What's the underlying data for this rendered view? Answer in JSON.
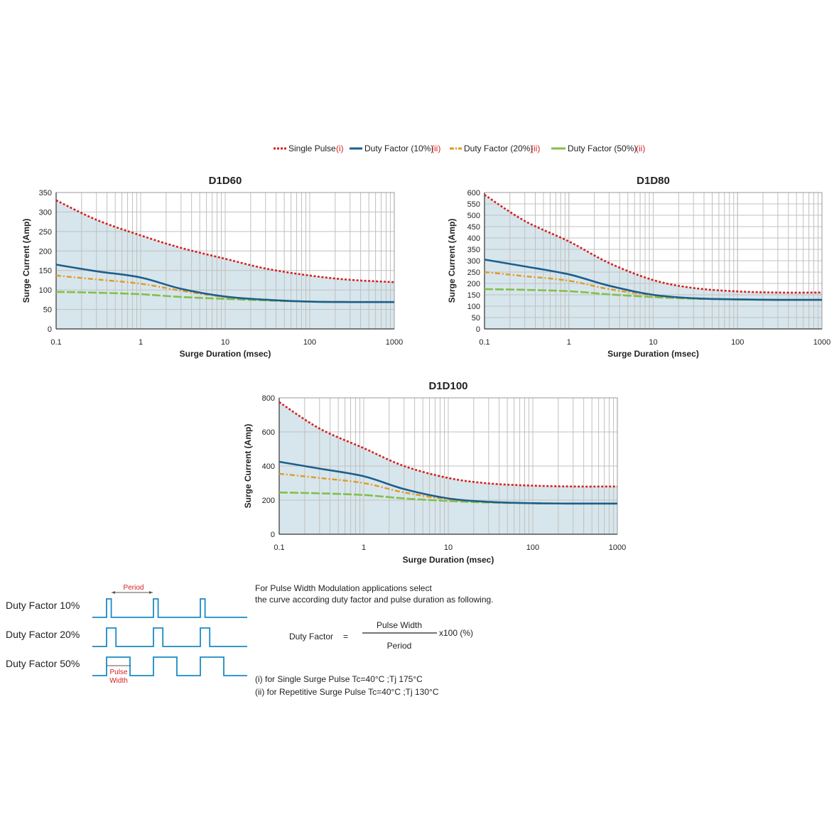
{
  "legend": {
    "items": [
      {
        "label": "Single Pulse",
        "note": "(i)",
        "color": "#d42020",
        "style": "dotted"
      },
      {
        "label": "Duty Factor (10%)",
        "note": "(ii)",
        "color": "#1c5f8e",
        "style": "solid"
      },
      {
        "label": "Duty Factor (20%)",
        "note": "(ii)",
        "color": "#e29a22",
        "style": "dashdot"
      },
      {
        "label": "Duty Factor (50%)",
        "note": "(ii)",
        "color": "#84bf4a",
        "style": "dashed"
      }
    ]
  },
  "colors": {
    "fill": "#d7e6ec",
    "grid": "#c0c0c0",
    "single": "#d42020",
    "df10": "#1c5f8e",
    "df20": "#e29a22",
    "df50": "#84bf4a",
    "pulse": "#1a8bc4",
    "period": "#d42020"
  },
  "chart_data": [
    {
      "type": "line",
      "title": "D1D60",
      "xlabel": "Surge Duration (msec)",
      "ylabel": "Surge Current (Amp)",
      "xscale": "log",
      "xlim": [
        0.1,
        1000
      ],
      "ylim": [
        0,
        350
      ],
      "xticks": [
        "0.1",
        "1",
        "10",
        "100",
        "1000"
      ],
      "yticks": [
        "0",
        "50",
        "100",
        "150",
        "200",
        "250",
        "300",
        "350"
      ],
      "x": [
        0.1,
        0.3,
        1,
        3,
        10,
        30,
        100,
        300,
        1000
      ],
      "series": [
        {
          "name": "Single Pulse",
          "values": [
            330,
            280,
            240,
            208,
            180,
            155,
            137,
            126,
            120
          ]
        },
        {
          "name": "Duty Factor (10%)",
          "values": [
            165,
            148,
            132,
            103,
            83,
            75,
            70,
            69,
            69
          ]
        },
        {
          "name": "Duty Factor (20%)",
          "values": [
            137,
            127,
            116,
            98,
            82,
            75,
            70,
            69,
            69
          ]
        },
        {
          "name": "Duty Factor (50%)",
          "values": [
            95,
            93,
            89,
            82,
            77,
            73,
            70,
            69,
            69
          ]
        }
      ]
    },
    {
      "type": "line",
      "title": "D1D80",
      "xlabel": "Surge Duration (msec)",
      "ylabel": "Surge Current (Amp)",
      "xscale": "log",
      "xlim": [
        0.1,
        1000
      ],
      "ylim": [
        0,
        600
      ],
      "xticks": [
        "0.1",
        "1",
        "10",
        "100",
        "1000"
      ],
      "yticks": [
        "0",
        "50",
        "100",
        "150",
        "200",
        "250",
        "300",
        "350",
        "400",
        "450",
        "500",
        "550",
        "600"
      ],
      "x": [
        0.1,
        0.3,
        1,
        3,
        10,
        30,
        100,
        300,
        1000
      ],
      "series": [
        {
          "name": "Single Pulse",
          "values": [
            590,
            475,
            385,
            290,
            215,
            180,
            165,
            160,
            160
          ]
        },
        {
          "name": "Duty Factor (10%)",
          "values": [
            305,
            275,
            240,
            190,
            150,
            135,
            130,
            128,
            128
          ]
        },
        {
          "name": "Duty Factor (20%)",
          "values": [
            250,
            232,
            212,
            175,
            148,
            135,
            130,
            128,
            128
          ]
        },
        {
          "name": "Duty Factor (50%)",
          "values": [
            175,
            172,
            166,
            152,
            140,
            133,
            130,
            128,
            128
          ]
        }
      ]
    },
    {
      "type": "line",
      "title": "D1D100",
      "xlabel": "Surge Duration (msec)",
      "ylabel": "Surge Current (Amp)",
      "xscale": "log",
      "xlim": [
        0.1,
        1000
      ],
      "ylim": [
        0,
        800
      ],
      "xticks": [
        "0.1",
        "1",
        "10",
        "100",
        "1000"
      ],
      "yticks": [
        "0",
        "200",
        "400",
        "600",
        "800"
      ],
      "x": [
        0.1,
        0.3,
        1,
        3,
        10,
        30,
        100,
        300,
        1000
      ],
      "series": [
        {
          "name": "Single Pulse",
          "values": [
            775,
            620,
            505,
            400,
            330,
            298,
            285,
            280,
            280
          ]
        },
        {
          "name": "Duty Factor (10%)",
          "values": [
            425,
            385,
            340,
            265,
            210,
            190,
            182,
            180,
            180
          ]
        },
        {
          "name": "Duty Factor (20%)",
          "values": [
            355,
            330,
            300,
            245,
            205,
            190,
            182,
            180,
            180
          ]
        },
        {
          "name": "Duty Factor (50%)",
          "values": [
            245,
            240,
            230,
            210,
            195,
            186,
            182,
            180,
            180
          ]
        }
      ]
    }
  ],
  "pulses": {
    "rows": [
      {
        "label": "Duty Factor 10%",
        "duty": 0.1
      },
      {
        "label": "Duty Factor 20%",
        "duty": 0.2
      },
      {
        "label": "Duty Factor 50%",
        "duty": 0.5
      }
    ],
    "period_label": "Period",
    "pulse_width_line1": "Pulse",
    "pulse_width_line2": "Width"
  },
  "notes": {
    "intro_line1": "For Pulse  Width Modulation applications select",
    "intro_line2": "the curve according duty factor and pulse duration as following.",
    "formula_label": "Duty Factor",
    "formula_equals": "=",
    "numerator": "Pulse  Width",
    "denominator": "Period",
    "multiplier": "x100 (%)",
    "cond_i": "(i) for Single Surge  Pulse  Tc=40°C ;Tj 175°C",
    "cond_ii": "(ii) for Repetitive  Surge Pulse  Tc=40°C ;Tj 130°C"
  }
}
